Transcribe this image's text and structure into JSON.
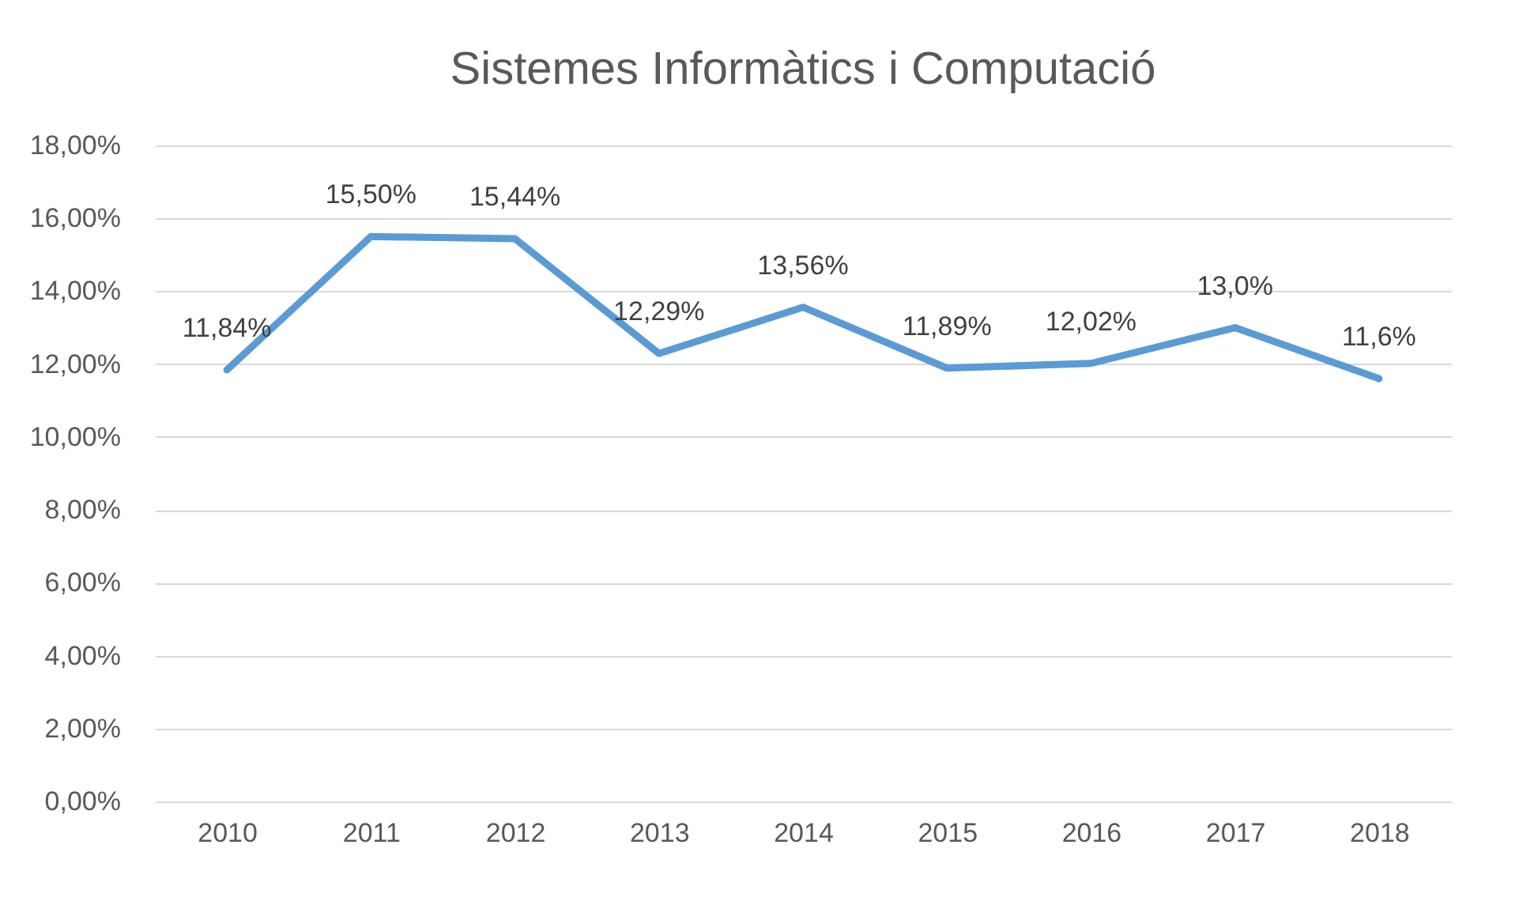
{
  "chart_data": {
    "type": "line",
    "title": "Sistemes Informàtics i Computació",
    "categories": [
      "2010",
      "2011",
      "2012",
      "2013",
      "2014",
      "2015",
      "2016",
      "2017",
      "2018"
    ],
    "series": [
      {
        "color": "#5b9bd5",
        "values": [
          11.84,
          15.5,
          15.44,
          12.29,
          13.56,
          11.89,
          12.02,
          13.0,
          11.6
        ],
        "value_labels": [
          "11,84%",
          "15,50%",
          "15,44%",
          "12,29%",
          "13,56%",
          "11,89%",
          "12,02%",
          "13,0%",
          "11,6%"
        ]
      }
    ],
    "ylim": [
      0,
      18
    ],
    "yticks": [
      {
        "value": 0,
        "label": "0,00%"
      },
      {
        "value": 2,
        "label": "2,00%"
      },
      {
        "value": 4,
        "label": "4,00%"
      },
      {
        "value": 6,
        "label": "6,00%"
      },
      {
        "value": 8,
        "label": "8,00%"
      },
      {
        "value": 10,
        "label": "10,00%"
      },
      {
        "value": 12,
        "label": "12,00%"
      },
      {
        "value": 14,
        "label": "14,00%"
      },
      {
        "value": 16,
        "label": "16,00%"
      },
      {
        "value": 18,
        "label": "18,00%"
      }
    ],
    "grid": "y"
  }
}
